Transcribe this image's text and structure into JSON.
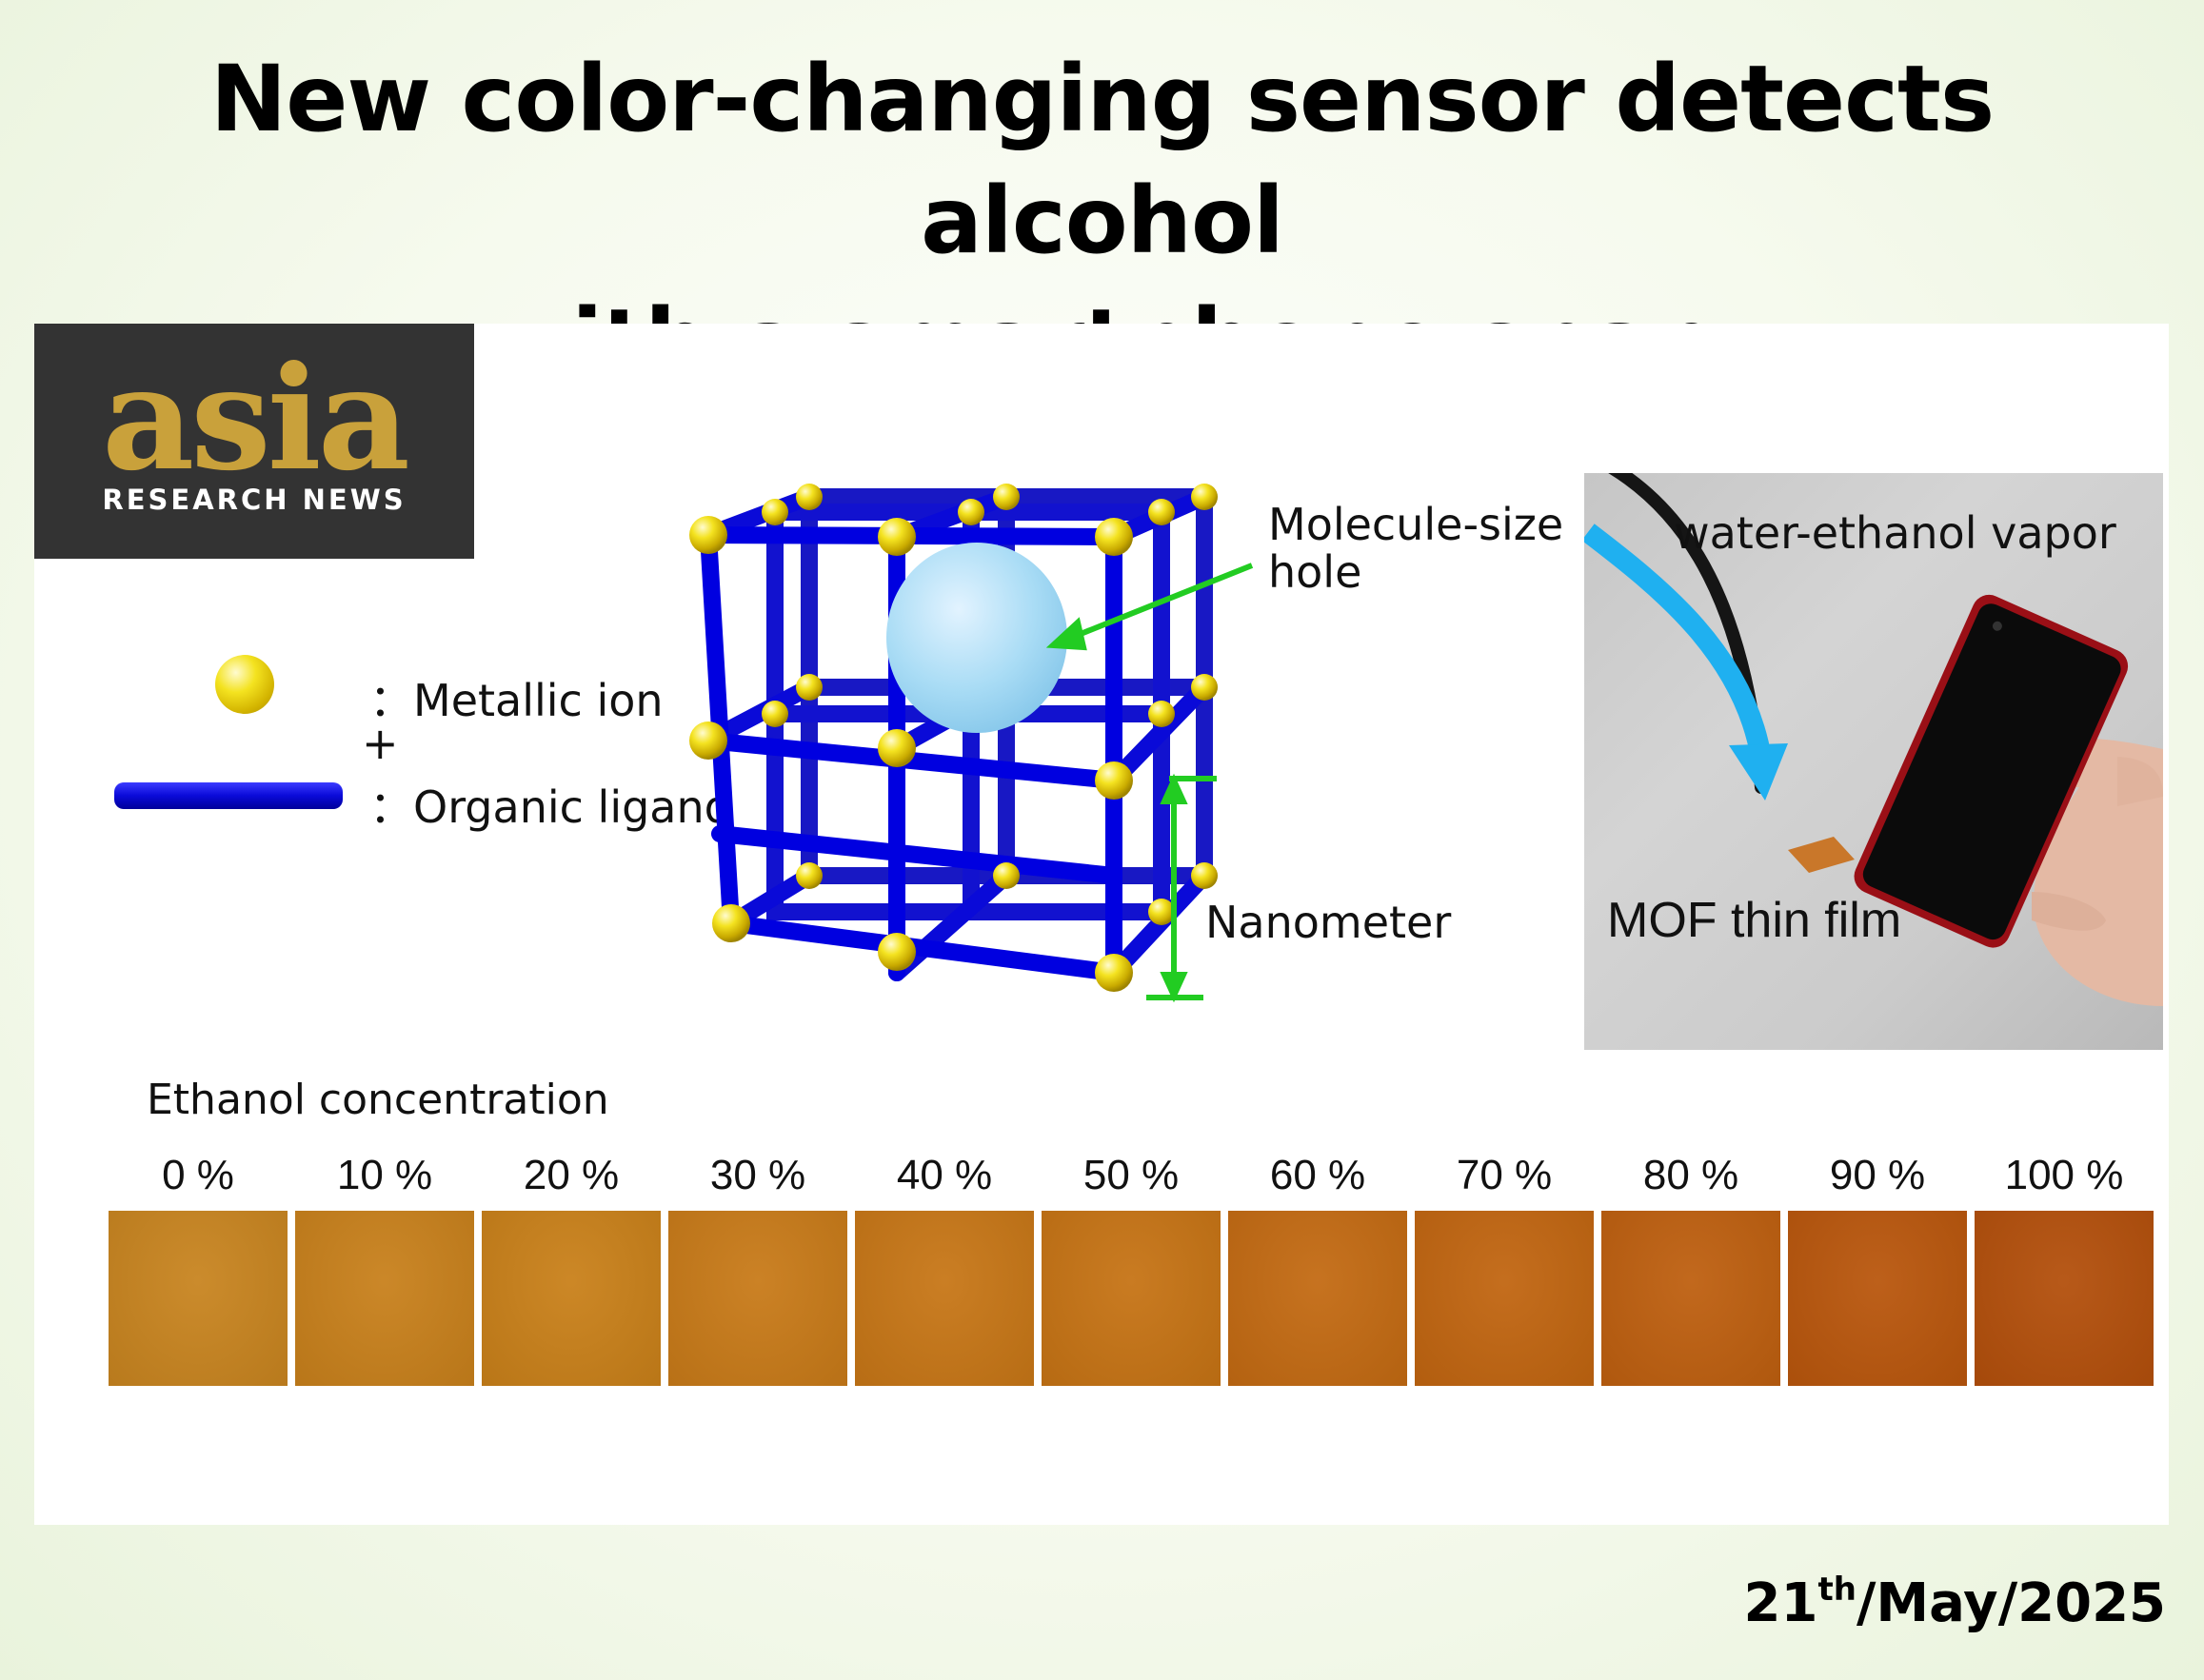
{
  "title": {
    "line1": "New color-changing sensor detects alcohol",
    "line2": "with a smartphone snap"
  },
  "logo": {
    "word": "asia",
    "subtitle": "RESEARCH NEWS"
  },
  "legend": {
    "metallic_ion": "：Metallic ion",
    "plus": "+",
    "organic_ligand": "：Organic ligand"
  },
  "diagram": {
    "hole_label": "Molecule-size\nhole",
    "scale_label": "Nanometer"
  },
  "photo": {
    "vapor_label": "water-ethanol vapor",
    "film_label": "MOF thin film"
  },
  "concentration": {
    "heading": "Ethanol concentration",
    "samples": [
      {
        "label": "0 %",
        "color": "#c8841f"
      },
      {
        "label": "10 %",
        "color": "#c8801b"
      },
      {
        "label": "20 %",
        "color": "#c98019"
      },
      {
        "label": "30 %",
        "color": "#c87a18"
      },
      {
        "label": "40 %",
        "color": "#c77616"
      },
      {
        "label": "50 %",
        "color": "#c67314"
      },
      {
        "label": "60 %",
        "color": "#c36a12"
      },
      {
        "label": "70 %",
        "color": "#c16510"
      },
      {
        "label": "80 %",
        "color": "#be5f0f"
      },
      {
        "label": "90 %",
        "color": "#b9560c"
      },
      {
        "label": "100 %",
        "color": "#b34f0b"
      }
    ]
  },
  "date": {
    "day": "21",
    "suffix": "th",
    "rest": "/May/2025"
  }
}
